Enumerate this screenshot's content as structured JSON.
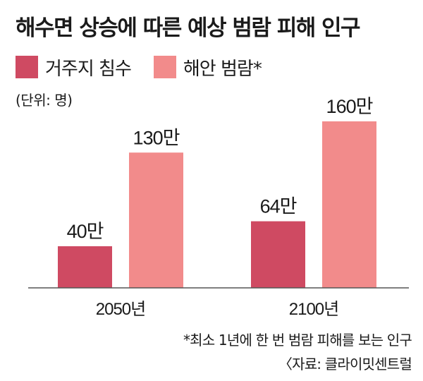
{
  "title": "해수면 상승에 따른 예상 범람 피해 인구",
  "unit": "(단위: 명)",
  "footnote": "*최소 1년에 한 번 범람 피해를 보는 인구",
  "source": "〈자료: 클라이밋센트럴",
  "colors": {
    "residence": "#cf4a62",
    "coastal": "#f28b8b",
    "axis": "#555555"
  },
  "chart_data": {
    "type": "bar",
    "categories": [
      "2050년",
      "2100년"
    ],
    "series": [
      {
        "name": "거주지 침수",
        "values": [
          40,
          64
        ],
        "labels": [
          "40만",
          "64만"
        ]
      },
      {
        "name": "해안 범람*",
        "values": [
          130,
          160
        ],
        "labels": [
          "130만",
          "160만"
        ]
      }
    ],
    "unit": "명",
    "ylim": [
      0,
      160
    ],
    "legend_position": "top-left",
    "grid": false
  }
}
